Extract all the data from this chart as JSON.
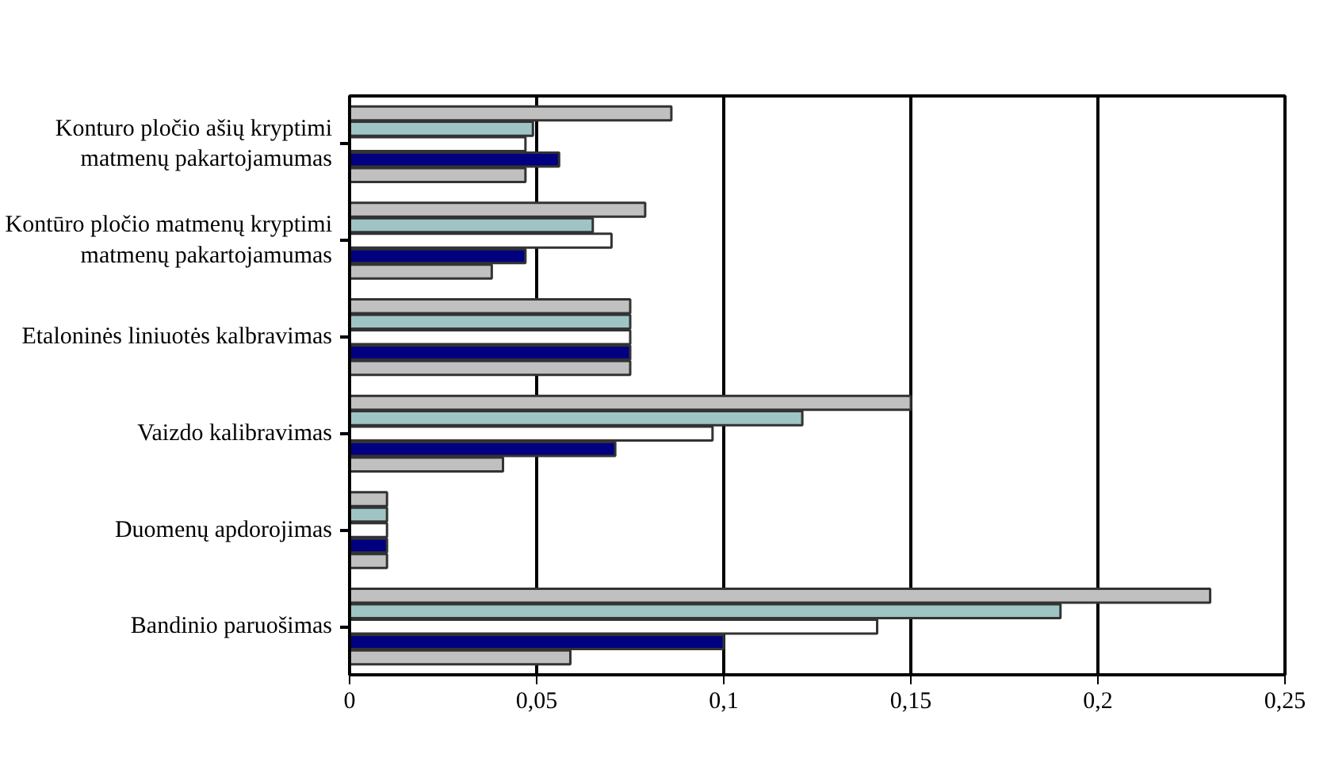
{
  "chart_data": {
    "type": "bar",
    "orientation": "horizontal",
    "categories": [
      "Konturo pločio ašių kryptimi matmenų pakartojamumas",
      "Kontūro pločio matmenų kryptimi matmenų pakartojamumas",
      "Etaloninės liniuotės kalbravimas",
      "Vaizdo kalibravimas",
      "Duomenų apdorojimas",
      "Bandinio paruošimas"
    ],
    "series": [
      {
        "color": "#c0c0c0",
        "values": [
          0.086,
          0.079,
          0.075,
          0.15,
          0.01,
          0.23
        ]
      },
      {
        "color": "#9fc4c4",
        "values": [
          0.049,
          0.065,
          0.075,
          0.121,
          0.01,
          0.19
        ]
      },
      {
        "color": "#ffffff",
        "values": [
          0.047,
          0.07,
          0.075,
          0.097,
          0.01,
          0.141
        ]
      },
      {
        "color": "#000080",
        "values": [
          0.056,
          0.047,
          0.075,
          0.071,
          0.01,
          0.1
        ]
      },
      {
        "color": "#c0c0c0",
        "values": [
          0.047,
          0.038,
          0.075,
          0.041,
          0.01,
          0.059
        ]
      }
    ],
    "xlim": [
      0,
      0.25
    ],
    "xticks": [
      0,
      {
        "value": 0.05,
        "label": "0,05"
      },
      {
        "value": 0.1,
        "label": "0,1"
      },
      {
        "value": 0.15,
        "label": "0,15"
      },
      {
        "value": 0.2,
        "label": "0,2"
      },
      {
        "value": 0.25,
        "label": "0,25"
      }
    ],
    "grid": "x"
  }
}
